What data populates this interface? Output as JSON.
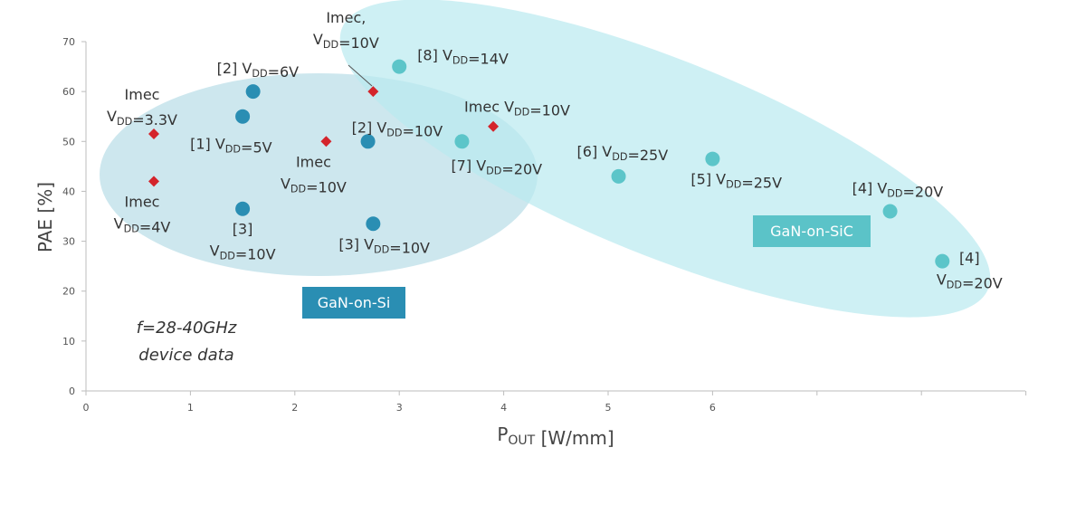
{
  "chart_data": {
    "type": "scatter",
    "xlabel": "POUT [W/mm]",
    "ylabel": "PAE [%]",
    "xlim": [
      0,
      9
    ],
    "ylim": [
      0,
      70
    ],
    "xticks": [
      0,
      1,
      2,
      3,
      4,
      5,
      6
    ],
    "yticks": [
      0,
      10,
      20,
      30,
      40,
      50,
      60,
      70
    ],
    "grid": false,
    "annotation": "f=28-40GHz\ndevice data",
    "regions": [
      {
        "name": "GaN-on-Si",
        "color": "#bcdfe8",
        "label_color": "#2a8eb3"
      },
      {
        "name": "GaN-on-SiC",
        "color": "#b9eaef",
        "label_color": "#5bc3c8"
      }
    ],
    "series": [
      {
        "name": "GaN-on-Si",
        "marker": "circle",
        "color": "#2a8eb3",
        "points": [
          {
            "x": 1.6,
            "y": 60,
            "label": "[2] VDD=6V"
          },
          {
            "x": 1.5,
            "y": 55,
            "label": "[1] VDD=5V"
          },
          {
            "x": 2.7,
            "y": 50,
            "label": "[2] VDD=10V"
          },
          {
            "x": 1.5,
            "y": 36.5,
            "label": "[3]\nVDD=10V"
          },
          {
            "x": 2.75,
            "y": 33.5,
            "label": "[3] VDD=10V"
          }
        ]
      },
      {
        "name": "Imec",
        "marker": "diamond",
        "color": "#d4242b",
        "points": [
          {
            "x": 0.65,
            "y": 51.5,
            "label": "Imec\nVDD=3.3V"
          },
          {
            "x": 0.65,
            "y": 42,
            "label": "Imec\nVDD=4V"
          },
          {
            "x": 2.3,
            "y": 50,
            "label": "Imec\nVDD=10V"
          },
          {
            "x": 2.75,
            "y": 60,
            "label": "Imec,\nVDD=10V"
          },
          {
            "x": 3.9,
            "y": 53,
            "label": "Imec VDD=10V"
          }
        ]
      },
      {
        "name": "GaN-on-SiC",
        "marker": "circle",
        "color": "#5cc5c9",
        "points": [
          {
            "x": 3.0,
            "y": 65,
            "label": "[8] VDD=14V"
          },
          {
            "x": 3.6,
            "y": 50,
            "label": "[7] VDD=20V"
          },
          {
            "x": 5.1,
            "y": 43,
            "label": "[6] VDD=25V"
          },
          {
            "x": 6.0,
            "y": 46.5,
            "label": "[5] VDD=25V"
          },
          {
            "x": 7.7,
            "y": 36,
            "label": "[4] VDD=20V"
          },
          {
            "x": 8.2,
            "y": 26,
            "label": "[4]\nVDD=20V"
          }
        ]
      }
    ]
  }
}
